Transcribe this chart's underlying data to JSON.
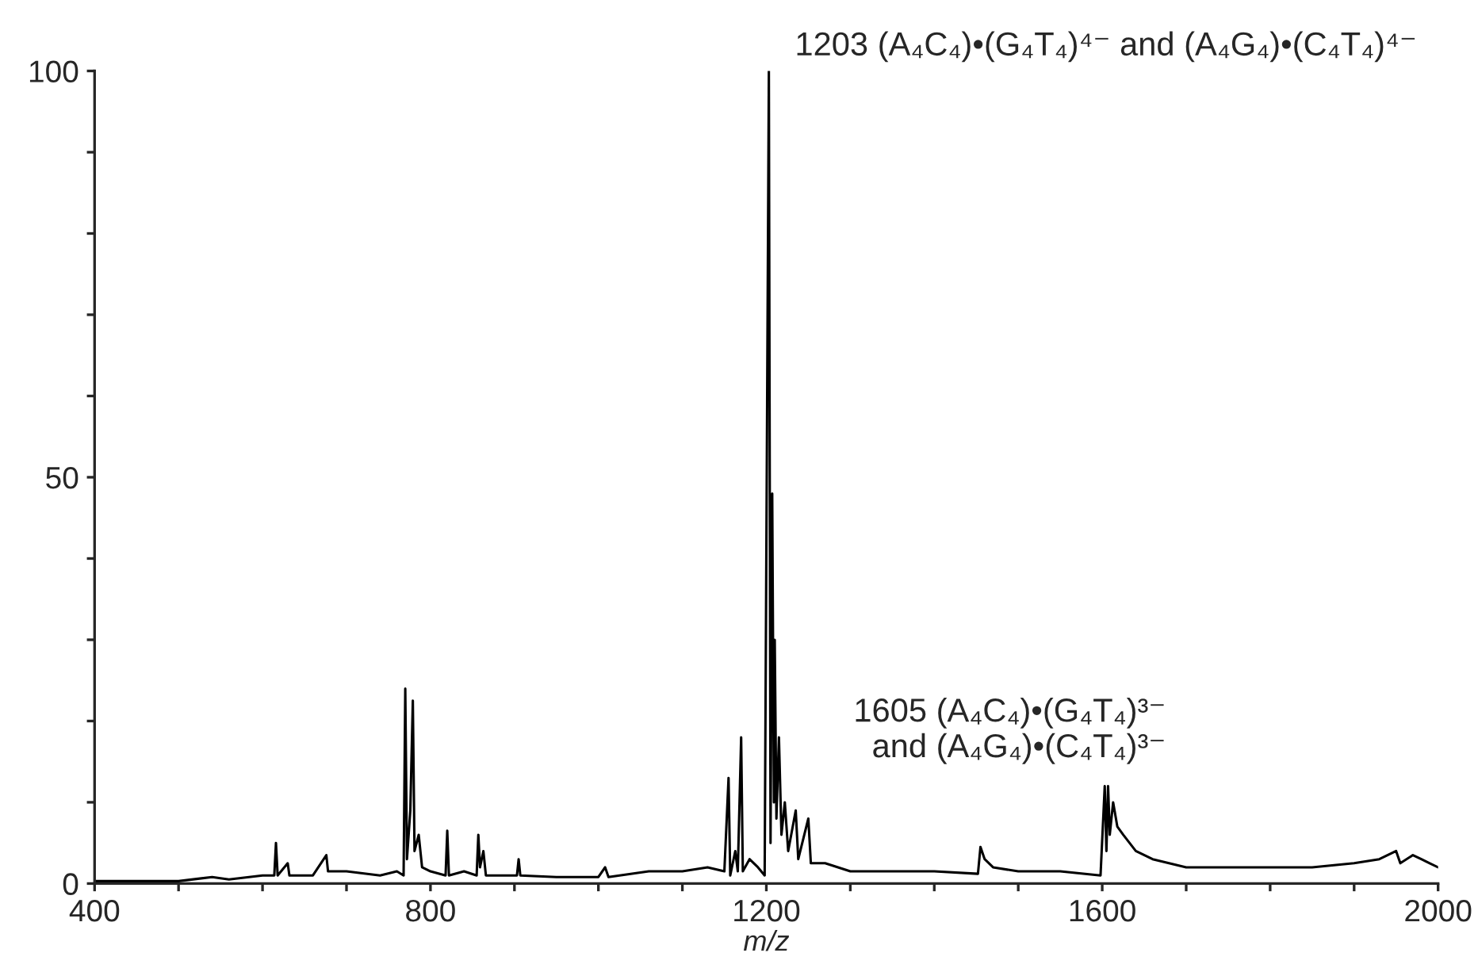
{
  "chart_data": {
    "type": "line",
    "xlabel": "m/z",
    "xlim": [
      400,
      2000
    ],
    "ylim": [
      0,
      100
    ],
    "xticks": [
      400,
      {
        "value": 500,
        "label": null
      },
      {
        "value": 600,
        "label": null
      },
      {
        "value": 700,
        "label": null
      },
      800,
      {
        "value": 900,
        "label": null
      },
      {
        "value": 1000,
        "label": null
      },
      {
        "value": 1100,
        "label": null
      },
      1200,
      {
        "value": 1300,
        "label": null
      },
      {
        "value": 1400,
        "label": null
      },
      {
        "value": 1500,
        "label": null
      },
      1600,
      {
        "value": 1700,
        "label": null
      },
      {
        "value": 1800,
        "label": null
      },
      {
        "value": 1900,
        "label": null
      },
      2000
    ],
    "yticks": [
      0,
      {
        "value": 10,
        "label": null
      },
      {
        "value": 20,
        "label": null
      },
      {
        "value": 30,
        "label": null
      },
      {
        "value": 40,
        "label": null
      },
      50,
      {
        "value": 60,
        "label": null
      },
      {
        "value": 70,
        "label": null
      },
      {
        "value": 80,
        "label": null
      },
      {
        "value": 90,
        "label": null
      },
      100
    ],
    "grid": false,
    "legend": false,
    "marker": "none",
    "line_style": "solid",
    "series": [
      {
        "color": "#000000",
        "x": [
          400,
          500,
          540,
          560,
          600,
          614,
          616,
          618,
          630,
          632,
          660,
          676,
          678,
          700,
          740,
          760,
          768,
          770,
          772,
          776,
          779,
          781,
          786,
          790,
          800,
          818,
          820,
          822,
          840,
          855,
          857,
          859,
          863,
          866,
          880,
          903,
          905,
          907,
          950,
          1000,
          1008,
          1012,
          1060,
          1100,
          1130,
          1150,
          1155,
          1157,
          1163,
          1166,
          1170,
          1172,
          1180,
          1190,
          1198,
          1203,
          1205,
          1207,
          1209,
          1210,
          1212,
          1215,
          1218,
          1222,
          1226,
          1235,
          1238,
          1250,
          1253,
          1270,
          1300,
          1350,
          1400,
          1452,
          1455,
          1460,
          1470,
          1500,
          1550,
          1598,
          1603,
          1605,
          1607,
          1609,
          1613,
          1618,
          1625,
          1640,
          1660,
          1700,
          1750,
          1800,
          1850,
          1900,
          1930,
          1950,
          1955,
          1970,
          1980,
          1990,
          2000
        ],
        "values": [
          0.3,
          0.3,
          0.8,
          0.5,
          1,
          1,
          5,
          1,
          2.5,
          1,
          1,
          3.5,
          1.5,
          1.5,
          1,
          1.5,
          1,
          24,
          3,
          9,
          22.5,
          4,
          6,
          2,
          1.5,
          1,
          6.5,
          1,
          1.5,
          1,
          6,
          2,
          4,
          1,
          1,
          1,
          3,
          1,
          0.8,
          0.8,
          2,
          0.8,
          1.5,
          1.5,
          2,
          1.5,
          13,
          1,
          4,
          1.5,
          18,
          1.5,
          3,
          2,
          1,
          100,
          5,
          48,
          10,
          30,
          8,
          18,
          6,
          10,
          4,
          9,
          3,
          8,
          2.5,
          2.5,
          1.5,
          1.5,
          1.5,
          1.2,
          4.5,
          3,
          2,
          1.5,
          1.5,
          1,
          12,
          4,
          12,
          6,
          10,
          7,
          6,
          4,
          3,
          2,
          2,
          2,
          2,
          2.5,
          3,
          4,
          2.5,
          3.5,
          3,
          2.5,
          2
        ]
      }
    ],
    "annotations": [
      {
        "text": "1203 (A₄C₄)•(G₄T₄)⁴⁻ and (A₄G₄)•(C₄T₄)⁴⁻",
        "x": 1203,
        "y": 100
      },
      {
        "text": "1605 (A₄C₄)•(G₄T₄)³⁻\nand (A₄G₄)•(C₄T₄)³⁻",
        "x": 1605,
        "y": 12
      }
    ]
  }
}
